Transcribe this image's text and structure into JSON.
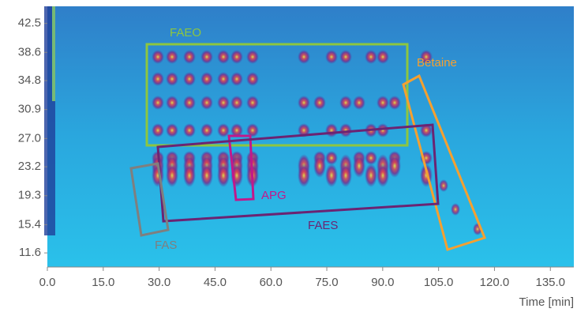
{
  "chart_data": {
    "type": "heatmap",
    "x_label": "Time [min]",
    "xlim": [
      0,
      141.3
    ],
    "ylim": [
      9.7,
      44.8
    ],
    "xticks": [
      {
        "value": 0,
        "label": "0.0"
      },
      {
        "value": 15,
        "label": "15.0"
      },
      {
        "value": 30,
        "label": "30.0"
      },
      {
        "value": 45,
        "label": "45.0"
      },
      {
        "value": 60,
        "label": "60.0"
      },
      {
        "value": 75,
        "label": "75.0"
      },
      {
        "value": 90,
        "label": "90.0"
      },
      {
        "value": 105,
        "label": "105.0"
      },
      {
        "value": 120,
        "label": "120.0"
      },
      {
        "value": 135,
        "label": "135.0"
      }
    ],
    "yticks": [
      42.5,
      38.6,
      34.8,
      30.9,
      {
        "value": 27,
        "label": "27.0"
      },
      23.2,
      19.3,
      15.4,
      11.6
    ],
    "annotations": [
      {
        "text": "FAEO",
        "color": "#8dc63f"
      },
      {
        "text": "Betaine",
        "color": "#f5a030"
      },
      {
        "text": "APG",
        "color": "#c2188b"
      },
      {
        "text": "FAES",
        "color": "#6b2473"
      },
      {
        "text": "FAS",
        "color": "#7f7f7f"
      }
    ]
  }
}
